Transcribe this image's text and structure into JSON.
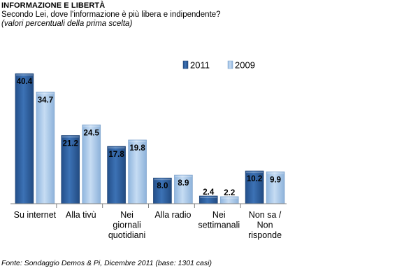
{
  "header": {
    "title": "INFORMAZIONE E LIBERTÀ",
    "subtitle": "Secondo Lei, dove l'informazione è più libera e indipendente?",
    "note": "(valori percentuali della prima scelta)"
  },
  "footer": {
    "source": "Fonte: Sondaggio Demos & Pi, Dicembre 2011 (base: 1301 casi)"
  },
  "chart_data": {
    "type": "bar",
    "categories": [
      [
        "Su internet"
      ],
      [
        "Alla tivù"
      ],
      [
        "Nei",
        "giornali",
        "quotidiani"
      ],
      [
        "Alla radio"
      ],
      [
        "Nei",
        "settimanali"
      ],
      [
        "Non sa /",
        "Non",
        "risponde"
      ]
    ],
    "series": [
      {
        "name": "2011",
        "values": [
          40.4,
          21.2,
          17.8,
          8.0,
          2.4,
          10.2
        ],
        "color": "#2f5f9e",
        "value_labels": [
          "40.4",
          "21.2",
          "17.8",
          "8.0",
          "2.4",
          "10.2"
        ]
      },
      {
        "name": "2009",
        "values": [
          34.7,
          24.5,
          19.8,
          8.9,
          2.2,
          9.9
        ],
        "color": "#a9c9ea",
        "value_labels": [
          "34.7",
          "24.5",
          "19.8",
          "8.9",
          "2.2",
          "9.9"
        ]
      }
    ],
    "ylim": [
      0,
      45
    ],
    "grid": false,
    "legend_position": "top-right",
    "xlabel": "",
    "ylabel": ""
  }
}
